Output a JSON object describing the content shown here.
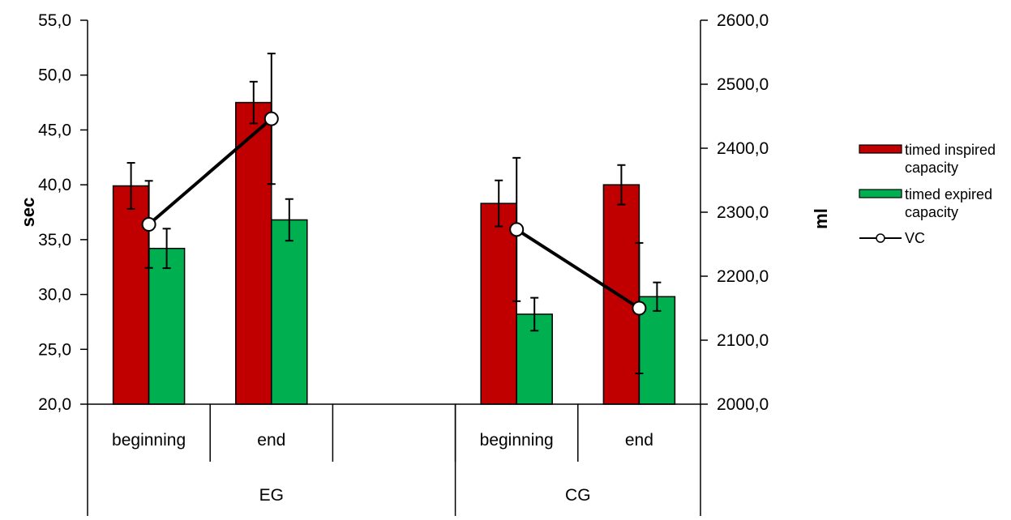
{
  "chart_data": {
    "type": "bar",
    "groups": [
      {
        "label": "EG",
        "categories": [
          "beginning",
          "end"
        ]
      },
      {
        "label": "",
        "categories": [
          ""
        ]
      },
      {
        "label": "CG",
        "categories": [
          "beginning",
          "end"
        ]
      }
    ],
    "categories": [
      "beginning",
      "end",
      "",
      "beginning",
      "end"
    ],
    "series": [
      {
        "name": "timed inspired capacity",
        "type": "bar",
        "axis": "left",
        "color": "#C00000",
        "values": [
          39.9,
          47.5,
          null,
          38.3,
          40.0
        ],
        "errors": [
          2.1,
          1.9,
          null,
          2.1,
          1.8
        ]
      },
      {
        "name": "timed expired capacity",
        "type": "bar",
        "axis": "left",
        "color": "#00B050",
        "values": [
          34.2,
          36.8,
          null,
          28.2,
          29.8
        ],
        "errors": [
          1.8,
          1.9,
          null,
          1.5,
          1.3
        ]
      },
      {
        "name": "VC",
        "type": "line",
        "axis": "right",
        "color": "#000000",
        "values": [
          2281,
          2446,
          null,
          2273,
          2150
        ],
        "errors": [
          68,
          102,
          null,
          112,
          102
        ]
      }
    ],
    "y_left": {
      "label": "sec",
      "range": [
        20,
        55
      ],
      "ticks": [
        "20,0",
        "25,0",
        "30,0",
        "35,0",
        "40,0",
        "45,0",
        "50,0",
        "55,0"
      ]
    },
    "y_right": {
      "label": "ml",
      "range": [
        2000,
        2600
      ],
      "ticks": [
        "2000,0",
        "2100,0",
        "2200,0",
        "2300,0",
        "2400,0",
        "2500,0",
        "2600,0"
      ]
    },
    "legend": {
      "placement": "right",
      "entries": [
        {
          "lines": [
            "timed inspired",
            "capacity"
          ],
          "color": "#C00000",
          "kind": "bar"
        },
        {
          "lines": [
            "timed expired",
            "capacity"
          ],
          "color": "#00B050",
          "kind": "bar"
        },
        {
          "lines": [
            "VC"
          ],
          "color": "#000000",
          "kind": "line"
        }
      ]
    },
    "grid": false
  }
}
